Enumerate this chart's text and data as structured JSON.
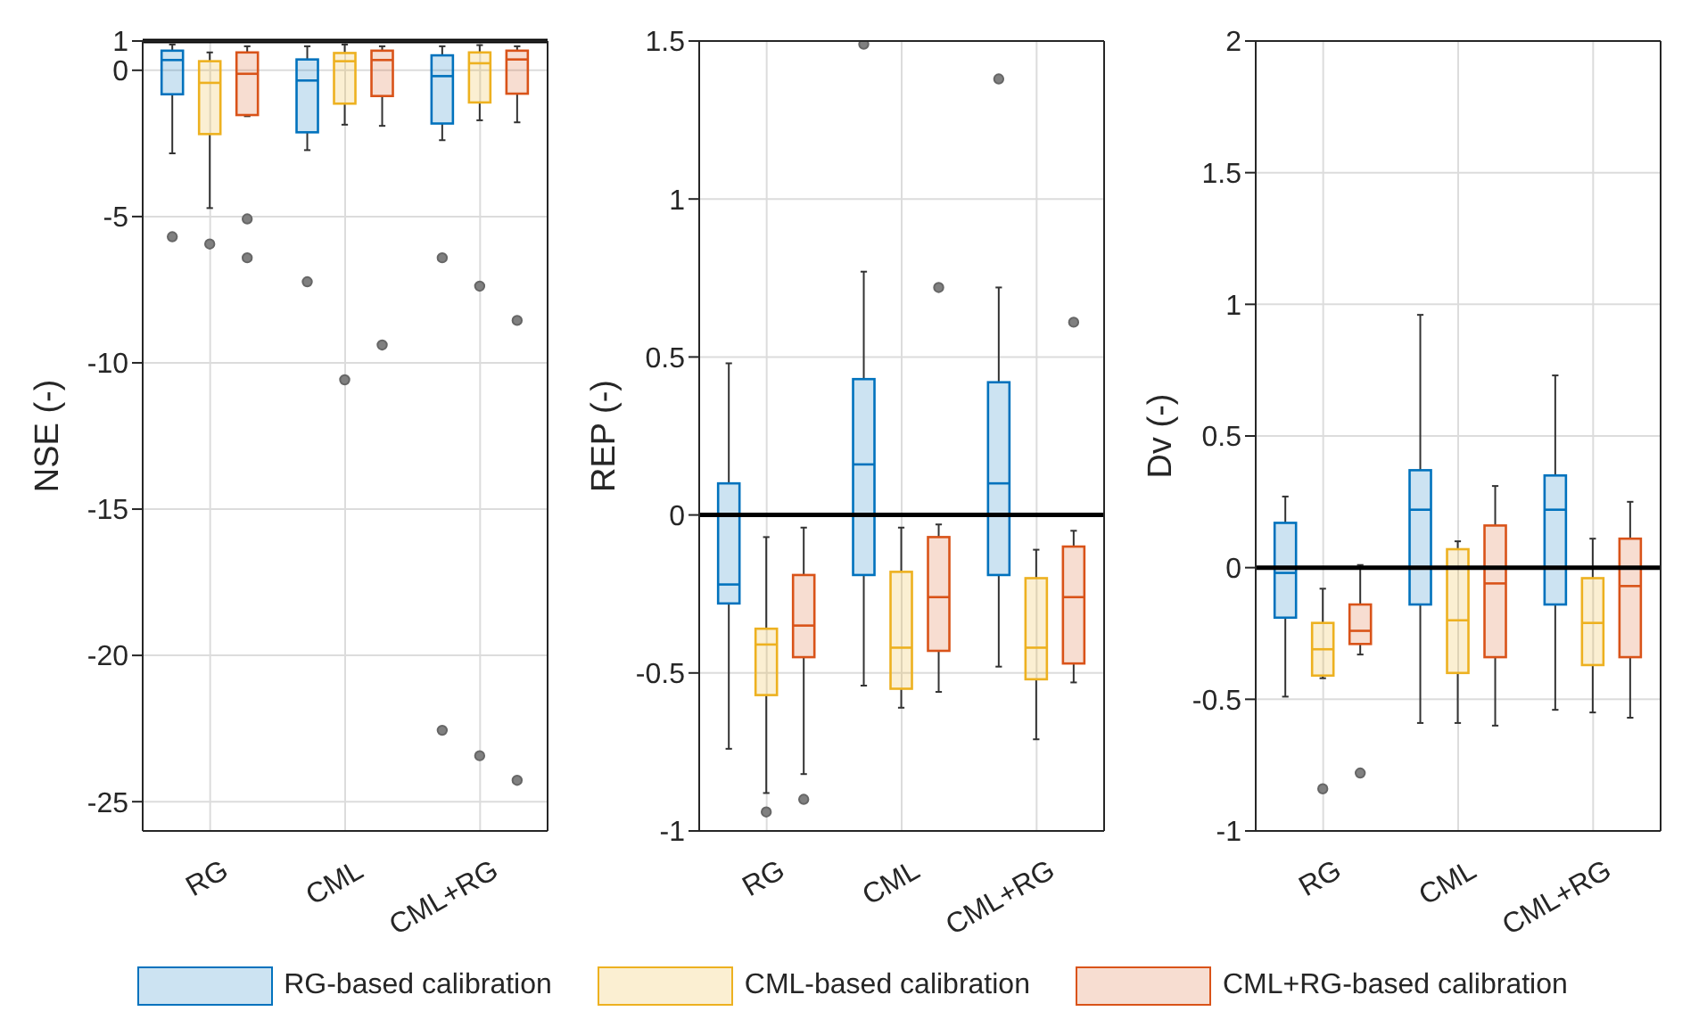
{
  "chart_data": [
    {
      "type": "box",
      "ylabel": "NSE (-)",
      "categories": [
        "RG",
        "CML",
        "CML+RG"
      ],
      "ylim": [
        -26,
        1
      ],
      "yticks": [
        1,
        0,
        -5,
        -10,
        -15,
        -20,
        -25
      ],
      "grid": true,
      "legend": "bottom",
      "ref_lines": [
        {
          "axis": "y",
          "value": 1,
          "color": "#000000"
        }
      ],
      "series": [
        {
          "name": "RG-based calibration",
          "color": "#0072bd",
          "boxes": [
            {
              "low": -2.84,
              "q1": -0.82,
              "median": 0.35,
              "q3": 0.67,
              "high": 0.88,
              "outliers": [
                -5.69
              ]
            },
            {
              "low": -2.73,
              "q1": -2.12,
              "median": -0.35,
              "q3": 0.37,
              "high": 0.82,
              "outliers": [
                -7.23
              ]
            },
            {
              "low": -2.39,
              "q1": -1.82,
              "median": -0.2,
              "q3": 0.51,
              "high": 0.82,
              "outliers": [
                -6.41,
                -22.56
              ]
            }
          ]
        },
        {
          "name": "CML-based calibration",
          "color": "#edb120",
          "boxes": [
            {
              "low": -4.71,
              "q1": -2.18,
              "median": -0.43,
              "q3": 0.31,
              "high": 0.61,
              "outliers": [
                -5.94
              ]
            },
            {
              "low": -1.86,
              "q1": -1.14,
              "median": 0.31,
              "q3": 0.59,
              "high": 0.88,
              "outliers": [
                -10.58
              ]
            },
            {
              "low": -1.71,
              "q1": -1.1,
              "median": 0.24,
              "q3": 0.61,
              "high": 0.86,
              "outliers": [
                -7.38,
                -23.43
              ]
            }
          ]
        },
        {
          "name": "CML+RG-based calibration",
          "color": "#d95319",
          "boxes": [
            {
              "low": -1.57,
              "q1": -1.53,
              "median": -0.12,
              "q3": 0.61,
              "high": 0.82,
              "outliers": [
                -5.08,
                -6.41
              ]
            },
            {
              "low": -1.9,
              "q1": -0.88,
              "median": 0.35,
              "q3": 0.67,
              "high": 0.82,
              "outliers": [
                -9.39
              ]
            },
            {
              "low": -1.78,
              "q1": -0.8,
              "median": 0.37,
              "q3": 0.67,
              "high": 0.82,
              "outliers": [
                -8.55,
                -24.27
              ]
            }
          ]
        }
      ]
    },
    {
      "type": "box",
      "ylabel": "REP (-)",
      "categories": [
        "RG",
        "CML",
        "CML+RG"
      ],
      "ylim": [
        -1,
        1.5
      ],
      "yticks": [
        -1,
        -0.5,
        0,
        0.5,
        1,
        1.5
      ],
      "grid": true,
      "ref_lines": [
        {
          "axis": "y",
          "value": 0,
          "color": "#000000"
        }
      ],
      "series": [
        {
          "color": "#0072bd",
          "boxes": [
            {
              "low": -0.74,
              "q1": -0.28,
              "median": -0.22,
              "q3": 0.1,
              "high": 0.48
            },
            {
              "low": -0.54,
              "q1": -0.19,
              "median": 0.16,
              "q3": 0.43,
              "high": 0.77,
              "outliers": [
                1.49
              ]
            },
            {
              "low": -0.48,
              "q1": -0.19,
              "median": 0.1,
              "q3": 0.42,
              "high": 0.72,
              "outliers": [
                1.38
              ]
            }
          ]
        },
        {
          "color": "#edb120",
          "boxes": [
            {
              "low": -0.88,
              "q1": -0.57,
              "median": -0.41,
              "q3": -0.36,
              "high": -0.07,
              "outliers": [
                -0.94
              ]
            },
            {
              "low": -0.61,
              "q1": -0.55,
              "median": -0.42,
              "q3": -0.18,
              "high": -0.04
            },
            {
              "low": -0.71,
              "q1": -0.52,
              "median": -0.42,
              "q3": -0.2,
              "high": -0.11
            }
          ]
        },
        {
          "color": "#d95319",
          "boxes": [
            {
              "low": -0.82,
              "q1": -0.45,
              "median": -0.35,
              "q3": -0.19,
              "high": -0.04,
              "outliers": [
                -0.9
              ]
            },
            {
              "low": -0.56,
              "q1": -0.43,
              "median": -0.26,
              "q3": -0.07,
              "high": -0.03,
              "outliers": [
                0.72
              ]
            },
            {
              "low": -0.53,
              "q1": -0.47,
              "median": -0.26,
              "q3": -0.1,
              "high": -0.05,
              "outliers": [
                0.61
              ]
            }
          ]
        }
      ]
    },
    {
      "type": "box",
      "ylabel": "Dv (-)",
      "categories": [
        "RG",
        "CML",
        "CML+RG"
      ],
      "ylim": [
        -1,
        2
      ],
      "yticks": [
        -1,
        -0.5,
        0,
        0.5,
        1,
        1.5,
        2
      ],
      "grid": true,
      "ref_lines": [
        {
          "axis": "y",
          "value": 0,
          "color": "#000000"
        }
      ],
      "series": [
        {
          "color": "#0072bd",
          "boxes": [
            {
              "low": -0.49,
              "q1": -0.19,
              "median": -0.02,
              "q3": 0.17,
              "high": 0.27
            },
            {
              "low": -0.59,
              "q1": -0.14,
              "median": 0.22,
              "q3": 0.37,
              "high": 0.96
            },
            {
              "low": -0.54,
              "q1": -0.14,
              "median": 0.22,
              "q3": 0.35,
              "high": 0.73
            }
          ]
        },
        {
          "color": "#edb120",
          "boxes": [
            {
              "low": -0.42,
              "q1": -0.41,
              "median": -0.31,
              "q3": -0.21,
              "high": -0.08,
              "outliers": [
                -0.84
              ]
            },
            {
              "low": -0.59,
              "q1": -0.4,
              "median": -0.2,
              "q3": 0.07,
              "high": 0.1
            },
            {
              "low": -0.55,
              "q1": -0.37,
              "median": -0.21,
              "q3": -0.04,
              "high": 0.11
            }
          ]
        },
        {
          "color": "#d95319",
          "boxes": [
            {
              "low": -0.33,
              "q1": -0.29,
              "median": -0.24,
              "q3": -0.14,
              "high": 0.01,
              "outliers": [
                -0.78
              ]
            },
            {
              "low": -0.6,
              "q1": -0.34,
              "median": -0.06,
              "q3": 0.16,
              "high": 0.31
            },
            {
              "low": -0.57,
              "q1": -0.34,
              "median": -0.07,
              "q3": 0.11,
              "high": 0.25
            }
          ]
        }
      ]
    }
  ]
}
